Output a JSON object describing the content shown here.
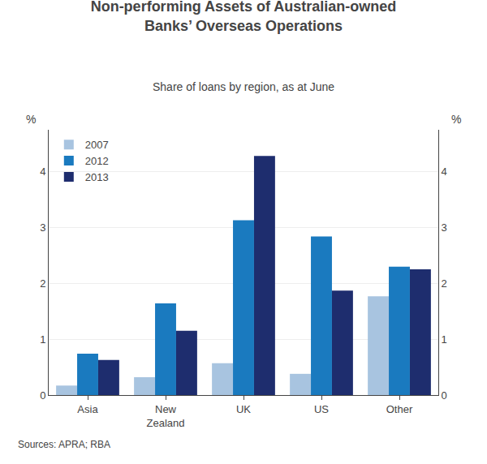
{
  "chart_data": {
    "type": "bar",
    "title": "Non-performing Assets of Australian-owned\nBanks’ Overseas Operations",
    "subtitle": "Share of loans by region, as at June",
    "ylabel": "%",
    "y2label": "%",
    "annotations": [
      "Sources: APRA; RBA"
    ],
    "categories": [
      "Asia",
      "New\nZealand",
      "UK",
      "US",
      "Other"
    ],
    "series": [
      {
        "name": "2007",
        "color": "#a8c4e0",
        "values": [
          0.17,
          0.32,
          0.57,
          0.38,
          1.77
        ]
      },
      {
        "name": "2012",
        "color": "#1a7abf",
        "values": [
          0.74,
          1.64,
          3.13,
          2.84,
          2.3
        ]
      },
      {
        "name": "2013",
        "color": "#1e2d6e",
        "values": [
          0.63,
          1.15,
          4.28,
          1.87,
          2.25
        ]
      }
    ],
    "ylim": [
      0,
      4.75
    ],
    "yticks": [
      0,
      1,
      2,
      3,
      4
    ],
    "y2lim": [
      0,
      4.75
    ],
    "y2ticks": [
      0,
      1,
      2,
      3,
      4
    ],
    "grid": true,
    "legend": "upper left"
  }
}
